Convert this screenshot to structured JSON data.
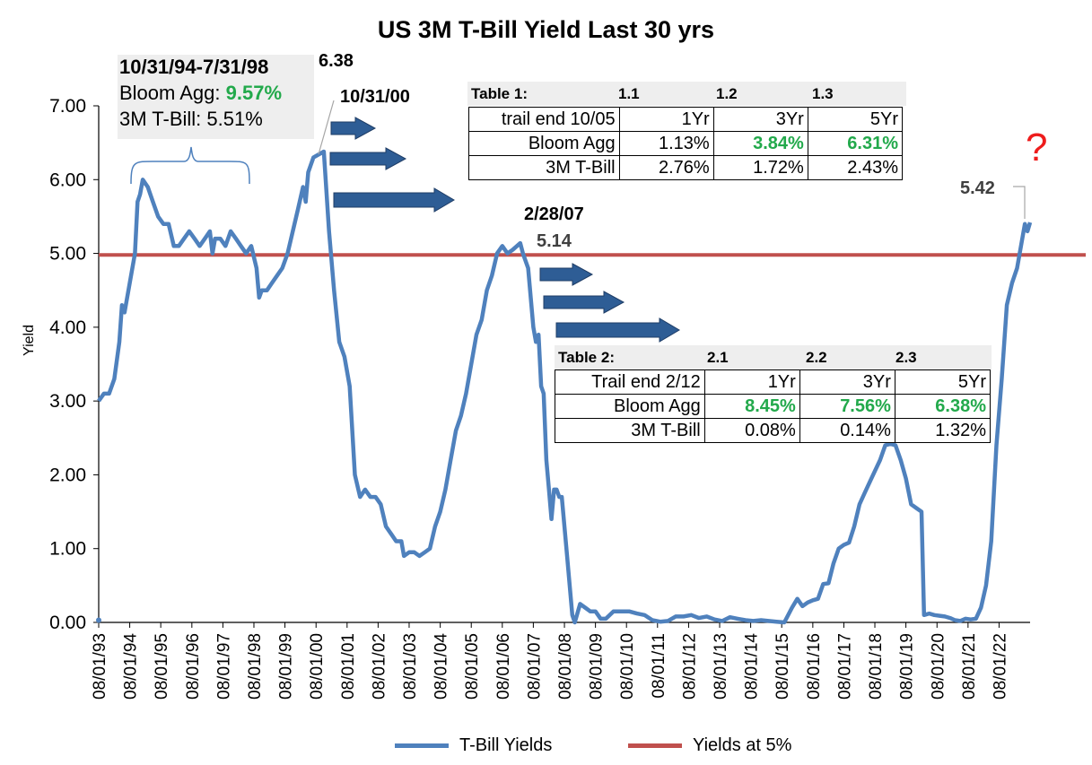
{
  "chart_data": {
    "type": "line",
    "title": "US 3M T-Bill Yield Last 30 yrs",
    "ylabel": "Yield",
    "xlabel": "",
    "ylim": [
      0,
      7
    ],
    "y_ticks": [
      "0.00",
      "1.00",
      "2.00",
      "3.00",
      "4.00",
      "5.00",
      "6.00",
      "7.00"
    ],
    "x_ticks": [
      "08/01/93",
      "08/01/94",
      "08/01/95",
      "08/01/96",
      "08/01/97",
      "08/01/98",
      "08/01/99",
      "08/01/00",
      "08/01/01",
      "08/01/02",
      "08/01/03",
      "08/01/04",
      "08/01/05",
      "08/01/06",
      "08/01/07",
      "08/01/08",
      "08/01/09",
      "08/01/10",
      "08/01/11",
      "08/01/12",
      "08/01/13",
      "08/01/14",
      "08/01/15",
      "08/01/16",
      "08/01/17",
      "08/01/18",
      "08/01/19",
      "08/01/20",
      "08/01/21",
      "08/01/22"
    ],
    "grid": false,
    "legend_position": "bottom",
    "series": [
      {
        "name": "T-Bill Yields",
        "color": "#4f81bd",
        "points": [
          [
            "1993-08-01",
            3.0
          ],
          [
            "1993-10-01",
            3.1
          ],
          [
            "1993-12-01",
            3.1
          ],
          [
            "1994-02-01",
            3.3
          ],
          [
            "1994-04-01",
            3.8
          ],
          [
            "1994-05-01",
            4.3
          ],
          [
            "1994-06-01",
            4.2
          ],
          [
            "1994-08-01",
            4.6
          ],
          [
            "1994-10-01",
            5.0
          ],
          [
            "1994-11-01",
            5.7
          ],
          [
            "1994-12-01",
            5.8
          ],
          [
            "1995-01-01",
            6.0
          ],
          [
            "1995-03-01",
            5.9
          ],
          [
            "1995-05-01",
            5.7
          ],
          [
            "1995-07-01",
            5.5
          ],
          [
            "1995-09-01",
            5.4
          ],
          [
            "1995-11-01",
            5.4
          ],
          [
            "1996-01-01",
            5.1
          ],
          [
            "1996-03-01",
            5.1
          ],
          [
            "1996-05-01",
            5.2
          ],
          [
            "1996-07-01",
            5.3
          ],
          [
            "1996-09-01",
            5.2
          ],
          [
            "1996-11-01",
            5.1
          ],
          [
            "1997-01-01",
            5.2
          ],
          [
            "1997-03-01",
            5.3
          ],
          [
            "1997-04-01",
            5.0
          ],
          [
            "1997-05-01",
            5.2
          ],
          [
            "1997-07-01",
            5.2
          ],
          [
            "1997-09-01",
            5.1
          ],
          [
            "1997-11-01",
            5.3
          ],
          [
            "1998-01-01",
            5.2
          ],
          [
            "1998-03-01",
            5.1
          ],
          [
            "1998-05-01",
            5.0
          ],
          [
            "1998-07-01",
            5.1
          ],
          [
            "1998-09-01",
            4.8
          ],
          [
            "1998-10-01",
            4.4
          ],
          [
            "1998-11-01",
            4.5
          ],
          [
            "1999-01-01",
            4.5
          ],
          [
            "1999-03-01",
            4.6
          ],
          [
            "1999-05-01",
            4.7
          ],
          [
            "1999-07-01",
            4.8
          ],
          [
            "1999-09-01",
            5.0
          ],
          [
            "1999-11-01",
            5.3
          ],
          [
            "2000-01-01",
            5.6
          ],
          [
            "2000-03-01",
            5.9
          ],
          [
            "2000-04-01",
            5.7
          ],
          [
            "2000-05-01",
            6.1
          ],
          [
            "2000-07-01",
            6.3
          ],
          [
            "2000-10-31",
            6.38
          ],
          [
            "2001-01-01",
            5.3
          ],
          [
            "2001-03-01",
            4.5
          ],
          [
            "2001-05-01",
            3.8
          ],
          [
            "2001-07-01",
            3.6
          ],
          [
            "2001-09-01",
            3.2
          ],
          [
            "2001-11-01",
            2.0
          ],
          [
            "2002-01-01",
            1.7
          ],
          [
            "2002-03-01",
            1.8
          ],
          [
            "2002-05-01",
            1.7
          ],
          [
            "2002-07-01",
            1.7
          ],
          [
            "2002-09-01",
            1.6
          ],
          [
            "2002-11-01",
            1.3
          ],
          [
            "2003-01-01",
            1.2
          ],
          [
            "2003-03-01",
            1.1
          ],
          [
            "2003-05-01",
            1.1
          ],
          [
            "2003-06-01",
            0.9
          ],
          [
            "2003-08-01",
            0.95
          ],
          [
            "2003-10-01",
            0.95
          ],
          [
            "2003-12-01",
            0.9
          ],
          [
            "2004-02-01",
            0.95
          ],
          [
            "2004-04-01",
            1.0
          ],
          [
            "2004-06-01",
            1.3
          ],
          [
            "2004-08-01",
            1.5
          ],
          [
            "2004-10-01",
            1.8
          ],
          [
            "2004-12-01",
            2.2
          ],
          [
            "2005-02-01",
            2.6
          ],
          [
            "2005-04-01",
            2.8
          ],
          [
            "2005-06-01",
            3.1
          ],
          [
            "2005-08-01",
            3.5
          ],
          [
            "2005-10-01",
            3.9
          ],
          [
            "2005-12-01",
            4.1
          ],
          [
            "2006-02-01",
            4.5
          ],
          [
            "2006-04-01",
            4.7
          ],
          [
            "2006-06-01",
            5.0
          ],
          [
            "2006-08-01",
            5.1
          ],
          [
            "2006-10-01",
            5.0
          ],
          [
            "2006-12-01",
            5.05
          ],
          [
            "2007-02-28",
            5.14
          ],
          [
            "2007-04-01",
            5.0
          ],
          [
            "2007-06-01",
            4.8
          ],
          [
            "2007-08-01",
            4.0
          ],
          [
            "2007-09-01",
            3.8
          ],
          [
            "2007-10-01",
            3.9
          ],
          [
            "2007-11-01",
            3.2
          ],
          [
            "2007-12-01",
            3.1
          ],
          [
            "2008-01-01",
            2.2
          ],
          [
            "2008-02-01",
            1.8
          ],
          [
            "2008-03-01",
            1.4
          ],
          [
            "2008-04-01",
            1.8
          ],
          [
            "2008-05-01",
            1.8
          ],
          [
            "2008-06-01",
            1.7
          ],
          [
            "2008-07-01",
            1.7
          ],
          [
            "2008-09-01",
            0.9
          ],
          [
            "2008-11-01",
            0.1
          ],
          [
            "2008-12-01",
            0.0
          ],
          [
            "2009-02-01",
            0.25
          ],
          [
            "2009-04-01",
            0.2
          ],
          [
            "2009-06-01",
            0.15
          ],
          [
            "2009-08-01",
            0.15
          ],
          [
            "2009-10-01",
            0.05
          ],
          [
            "2009-12-01",
            0.05
          ],
          [
            "2010-03-01",
            0.15
          ],
          [
            "2010-06-01",
            0.15
          ],
          [
            "2010-09-01",
            0.15
          ],
          [
            "2010-12-01",
            0.12
          ],
          [
            "2011-03-01",
            0.1
          ],
          [
            "2011-06-01",
            0.03
          ],
          [
            "2011-09-01",
            0.01
          ],
          [
            "2011-12-01",
            0.02
          ],
          [
            "2012-03-01",
            0.08
          ],
          [
            "2012-06-01",
            0.08
          ],
          [
            "2012-09-01",
            0.1
          ],
          [
            "2012-12-01",
            0.06
          ],
          [
            "2013-03-01",
            0.08
          ],
          [
            "2013-06-01",
            0.04
          ],
          [
            "2013-09-01",
            0.02
          ],
          [
            "2013-12-01",
            0.07
          ],
          [
            "2014-03-01",
            0.05
          ],
          [
            "2014-06-01",
            0.03
          ],
          [
            "2014-09-01",
            0.02
          ],
          [
            "2014-12-01",
            0.03
          ],
          [
            "2015-03-01",
            0.02
          ],
          [
            "2015-06-01",
            0.01
          ],
          [
            "2015-09-01",
            0.0
          ],
          [
            "2015-12-01",
            0.2
          ],
          [
            "2016-02-01",
            0.32
          ],
          [
            "2016-04-01",
            0.22
          ],
          [
            "2016-06-01",
            0.27
          ],
          [
            "2016-08-01",
            0.3
          ],
          [
            "2016-10-01",
            0.32
          ],
          [
            "2016-12-01",
            0.52
          ],
          [
            "2017-02-01",
            0.53
          ],
          [
            "2017-04-01",
            0.8
          ],
          [
            "2017-06-01",
            1.0
          ],
          [
            "2017-08-01",
            1.05
          ],
          [
            "2017-10-01",
            1.08
          ],
          [
            "2017-12-01",
            1.3
          ],
          [
            "2018-02-01",
            1.6
          ],
          [
            "2018-04-01",
            1.75
          ],
          [
            "2018-06-01",
            1.9
          ],
          [
            "2018-08-01",
            2.05
          ],
          [
            "2018-10-01",
            2.2
          ],
          [
            "2018-12-01",
            2.4
          ],
          [
            "2019-02-01",
            2.42
          ],
          [
            "2019-04-01",
            2.4
          ],
          [
            "2019-06-01",
            2.2
          ],
          [
            "2019-08-01",
            1.95
          ],
          [
            "2019-10-01",
            1.6
          ],
          [
            "2019-12-01",
            1.55
          ],
          [
            "2020-02-01",
            1.5
          ],
          [
            "2020-03-01",
            0.1
          ],
          [
            "2020-05-01",
            0.12
          ],
          [
            "2020-07-01",
            0.1
          ],
          [
            "2020-09-01",
            0.09
          ],
          [
            "2020-11-01",
            0.08
          ],
          [
            "2021-01-01",
            0.06
          ],
          [
            "2021-03-01",
            0.03
          ],
          [
            "2021-05-01",
            0.02
          ],
          [
            "2021-07-01",
            0.05
          ],
          [
            "2021-09-01",
            0.04
          ],
          [
            "2021-11-01",
            0.05
          ],
          [
            "2022-01-01",
            0.2
          ],
          [
            "2022-03-01",
            0.5
          ],
          [
            "2022-05-01",
            1.1
          ],
          [
            "2022-07-01",
            2.4
          ],
          [
            "2022-09-01",
            3.3
          ],
          [
            "2022-11-01",
            4.3
          ],
          [
            "2023-01-01",
            4.6
          ],
          [
            "2023-03-01",
            4.8
          ],
          [
            "2023-05-01",
            5.2
          ],
          [
            "2023-06-01",
            5.4
          ],
          [
            "2023-07-01",
            5.3
          ],
          [
            "2023-08-01",
            5.42
          ]
        ]
      },
      {
        "name": "Yields at 5%",
        "color": "#c0504d",
        "points": [
          [
            "1993-08-01",
            4.98
          ],
          [
            "2023-08-01",
            4.98
          ]
        ]
      }
    ],
    "annotations": {
      "period_label": "10/31/94-7/31/98",
      "bloom_agg_label": "Bloom Agg:",
      "bloom_agg_value": "9.57%",
      "tbill_line": "3M T-Bill: 5.51%",
      "peak_2000_value": "6.38",
      "peak_2000_date": "10/31/00",
      "peak_2007_date": "2/28/07",
      "peak_2007_value": "5.14",
      "latest_value": "5.42",
      "question_mark": "?"
    },
    "table1": {
      "title": "Table 1:",
      "col_ids": [
        "1.1",
        "1.2",
        "1.3"
      ],
      "rows": [
        [
          "trail end 10/05",
          "1Yr",
          "3Yr",
          "5Yr"
        ],
        [
          "Bloom Agg",
          "1.13%",
          "3.84%",
          "6.31%"
        ],
        [
          "3M T-Bill",
          "2.76%",
          "1.72%",
          "2.43%"
        ]
      ]
    },
    "table2": {
      "title": "Table 2:",
      "col_ids": [
        "2.1",
        "2.2",
        "2.3"
      ],
      "rows": [
        [
          "Trail end 2/12",
          "1Yr",
          "3Yr",
          "5Yr"
        ],
        [
          "Bloom Agg",
          "8.45%",
          "7.56%",
          "6.38%"
        ],
        [
          "3M T-Bill",
          "0.08%",
          "0.14%",
          "1.32%"
        ]
      ]
    },
    "highlight_color": "#22a94b",
    "arrow_color": "#2e5d95"
  }
}
